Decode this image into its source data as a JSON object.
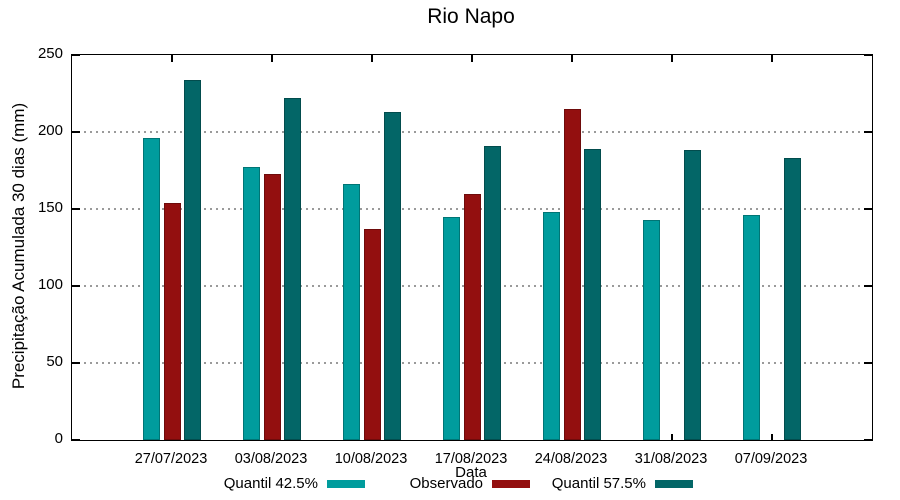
{
  "chart_data": {
    "type": "bar",
    "title": "Rio Napo",
    "xlabel": "Data",
    "ylabel": "Precipitação Acumulada 30 dias (mm)",
    "ylim": [
      0,
      250
    ],
    "y_ticks": [
      0,
      50,
      100,
      150,
      200,
      250
    ],
    "grid": true,
    "legend_position": "bottom",
    "categories": [
      "27/07/2023",
      "03/08/2023",
      "10/08/2023",
      "17/08/2023",
      "24/08/2023",
      "31/08/2023",
      "07/09/2023"
    ],
    "series": [
      {
        "name": "Quantil 42.5%",
        "color": "#009C9D",
        "values": [
          196,
          177,
          166,
          145,
          148,
          143,
          146
        ]
      },
      {
        "name": "Observado",
        "color": "#930F0F",
        "values": [
          154,
          173,
          137,
          160,
          215,
          null,
          null
        ]
      },
      {
        "name": "Quantil 57.5%",
        "color": "#036667",
        "values": [
          234,
          222,
          213,
          191,
          189,
          188,
          183
        ]
      }
    ]
  },
  "colors": {
    "background": "#ffffff",
    "axis": "#000000",
    "grid": "#9a9a9a",
    "text": "#000000"
  }
}
